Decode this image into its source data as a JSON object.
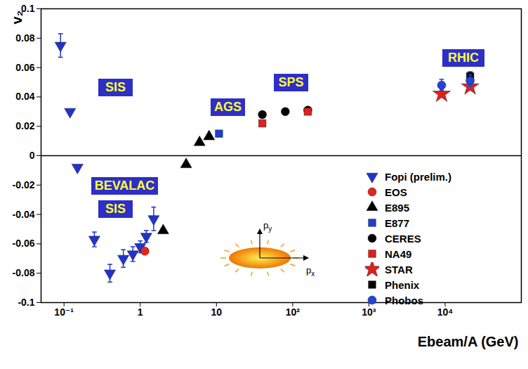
{
  "chart_data": {
    "type": "scatter",
    "x_label": "Ebeam/A (GeV)",
    "y_label": "v₂",
    "log": "x",
    "grid": false,
    "legend": "bottom-right",
    "xlim": [
      0.05,
      100000
    ],
    "xticks": [
      {
        "value": 0.1,
        "label": "10⁻¹"
      },
      1,
      10,
      {
        "value": 100,
        "label": "10²"
      },
      {
        "value": 1000,
        "label": "10³"
      },
      {
        "value": 10000,
        "label": "10⁴"
      }
    ],
    "ylim": [
      -0.1,
      0.1
    ],
    "yticks": [
      -0.1,
      -0.08,
      -0.06,
      -0.04,
      -0.02,
      0,
      0.02,
      0.04,
      0.06,
      0.08,
      0.1
    ],
    "hlines": [
      0
    ],
    "annotations": [
      "SIS",
      "AGS",
      "SPS",
      "RHIC",
      "BEVALAC",
      "SIS"
    ],
    "inset_labels": [
      "py",
      "px"
    ],
    "series": [
      {
        "name": "Fopi (prelim.)",
        "color": "#2233cc",
        "marker": "triangle-down",
        "x": [
          0.09,
          0.12,
          0.15,
          0.25,
          0.4,
          0.6,
          0.8,
          1.0,
          1.2,
          1.5
        ],
        "values": [
          0.075,
          0.03,
          -0.008,
          -0.057,
          -0.08,
          -0.07,
          -0.067,
          -0.062,
          -0.055,
          -0.043
        ],
        "errors": [
          0.008,
          null,
          null,
          0.005,
          0.006,
          0.006,
          0.005,
          0.004,
          0.004,
          0.008
        ]
      },
      {
        "name": "EOS",
        "color": "#e8231b",
        "marker": "circle",
        "x": [
          1.15
        ],
        "values": [
          -0.065
        ]
      },
      {
        "name": "E895",
        "color": "#000000",
        "marker": "triangle",
        "x": [
          2,
          4,
          6,
          8
        ],
        "values": [
          -0.051,
          -0.006,
          0.009,
          0.013
        ]
      },
      {
        "name": "E877",
        "color": "#1f3fcf",
        "marker": "square",
        "x": [
          10.8
        ],
        "values": [
          0.015
        ]
      },
      {
        "name": "CERES",
        "color": "#000000",
        "marker": "circle",
        "x": [
          40,
          80,
          158
        ],
        "values": [
          0.028,
          0.03,
          0.031
        ]
      },
      {
        "name": "NA49",
        "color": "#e0201b",
        "marker": "square",
        "x": [
          40,
          158
        ],
        "values": [
          0.022,
          0.03
        ]
      },
      {
        "name": "STAR",
        "color": "#e0201b",
        "marker": "star",
        "x": [
          9000,
          21300
        ],
        "values": [
          0.042,
          0.047
        ]
      },
      {
        "name": "Phenix",
        "color": "#000000",
        "marker": "square",
        "x": [
          21300
        ],
        "values": [
          0.054
        ],
        "errors": [
          0.003
        ]
      },
      {
        "name": "Phobos",
        "color": "#2244dd",
        "marker": "circle",
        "x": [
          9000,
          21300
        ],
        "values": [
          0.048,
          0.051
        ],
        "errors": [
          0.004,
          0.004
        ]
      }
    ]
  }
}
